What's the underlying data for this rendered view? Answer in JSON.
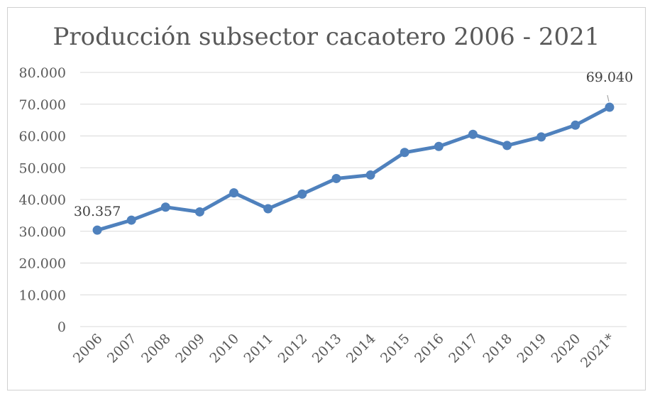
{
  "chart_data": {
    "type": "line",
    "title": "Producción subsector cacaotero 2006 - 2021",
    "xlabel": "",
    "ylabel": "",
    "categories": [
      "2006",
      "2007",
      "2008",
      "2009",
      "2010",
      "2011",
      "2012",
      "2013",
      "2014",
      "2015",
      "2016",
      "2017",
      "2018",
      "2019",
      "2020",
      "2021*"
    ],
    "series": [
      {
        "values": [
          30357,
          33500,
          37600,
          36100,
          42100,
          37100,
          41700,
          46600,
          47700,
          54800,
          56700,
          60500,
          57000,
          59700,
          63400,
          69040
        ]
      }
    ],
    "ylim": [
      0,
      80000
    ],
    "yticks": [
      "0",
      "10.000",
      "20.000",
      "30.000",
      "40.000",
      "50.000",
      "60.000",
      "70.000",
      "80.000"
    ],
    "ytick_values": [
      0,
      10000,
      20000,
      30000,
      40000,
      50000,
      60000,
      70000,
      80000
    ],
    "grid": "horizontal",
    "legend": "none",
    "data_labels": [
      {
        "category_index": 0,
        "text": "30.357"
      },
      {
        "category_index": 15,
        "text": "69.040"
      }
    ],
    "colors": {
      "series": "#4f81bd",
      "grid": "#d9d9d9",
      "text": "#595959"
    }
  }
}
